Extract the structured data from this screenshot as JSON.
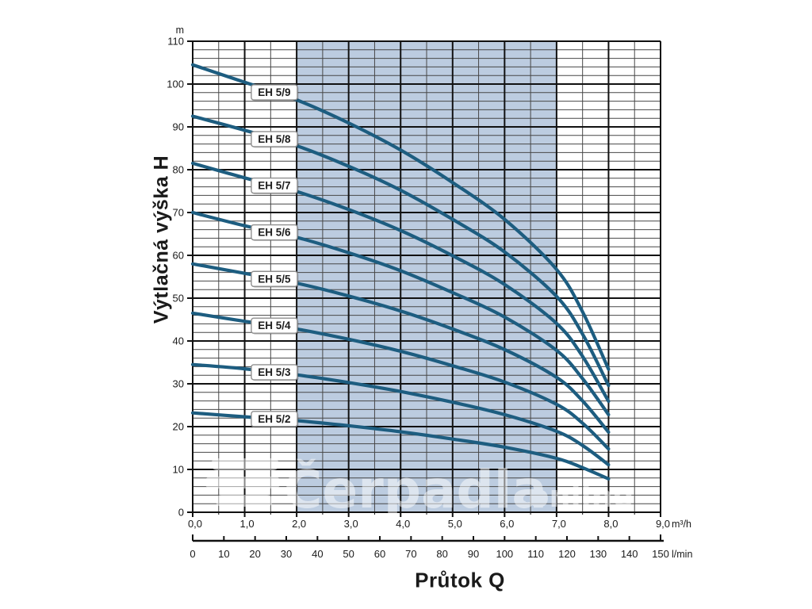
{
  "axes": {
    "y_title": "Výtlačná výška H",
    "x_title": "Průtok Q",
    "y_unit": "m",
    "x_unit_primary": "m³/h",
    "x_unit_secondary": "l/min"
  },
  "chart_data": {
    "type": "line",
    "title": "",
    "xlabel": "Průtok Q",
    "ylabel": "Výtlačná výška H",
    "y_unit": "m",
    "x_unit_primary": "m³/h",
    "x_unit_secondary": "l/min",
    "xlim": [
      0,
      9
    ],
    "ylim": [
      0,
      110
    ],
    "x2lim": [
      0,
      150
    ],
    "x_major_step": 1,
    "x_minor_step": 0.5,
    "y_major_step": 10,
    "y_minor_step": 2,
    "x2_major_step": 10,
    "grid": "on",
    "legend_position": "labels-on-curves",
    "x_tick_labels": [
      "0,0",
      "1,0",
      "2,0",
      "3,0",
      "4,0",
      "5,0",
      "6,0",
      "7,0",
      "8,0",
      "9,0"
    ],
    "y_tick_labels": [
      "0",
      "10",
      "20",
      "30",
      "40",
      "50",
      "60",
      "70",
      "80",
      "90",
      "100",
      "110"
    ],
    "x2_tick_labels": [
      "0",
      "10",
      "20",
      "30",
      "40",
      "50",
      "60",
      "70",
      "80",
      "90",
      "100",
      "110",
      "120",
      "130",
      "140",
      "150"
    ],
    "recommended_range_band": {
      "x_from": 2.0,
      "x_to": 7.0
    },
    "label_anchor_x": 1.57,
    "x": [
      0,
      1,
      2,
      3,
      4,
      5,
      6,
      7,
      7.5,
      8
    ],
    "series": [
      {
        "name": "EH 5/9",
        "values": [
          104.5,
          100.4,
          96.3,
          90.9,
          84.6,
          77.0,
          68.4,
          56.7,
          46.8,
          33.4
        ]
      },
      {
        "name": "EH 5/8",
        "values": [
          92.5,
          89.2,
          85.6,
          80.8,
          75.2,
          68.4,
          60.8,
          50.4,
          41.6,
          29.6
        ]
      },
      {
        "name": "EH 5/7",
        "values": [
          81.5,
          78.1,
          74.9,
          70.7,
          65.8,
          59.9,
          53.2,
          44.1,
          36.4,
          25.9
        ]
      },
      {
        "name": "EH 5/6",
        "values": [
          70.0,
          66.9,
          64.2,
          60.6,
          56.4,
          51.3,
          45.6,
          37.8,
          31.2,
          22.8
        ]
      },
      {
        "name": "EH 5/5",
        "values": [
          58.0,
          55.8,
          53.5,
          50.5,
          47.0,
          42.8,
          38.0,
          31.5,
          26.0,
          18.7
        ]
      },
      {
        "name": "EH 5/4",
        "values": [
          46.5,
          44.6,
          42.8,
          40.4,
          37.6,
          34.2,
          30.4,
          25.2,
          20.8,
          14.8
        ]
      },
      {
        "name": "EH 5/3",
        "values": [
          34.5,
          33.5,
          32.1,
          30.3,
          28.2,
          25.7,
          22.8,
          18.9,
          15.6,
          11.1
        ]
      },
      {
        "name": "EH 5/2",
        "values": [
          23.2,
          22.3,
          21.4,
          20.2,
          18.8,
          17.1,
          15.2,
          12.6,
          10.4,
          7.8
        ]
      }
    ]
  },
  "colors": {
    "curve": "#1d5d80",
    "band": "#bccce0",
    "grid_minor": "#474747",
    "grid_major": "#111111",
    "text": "#1a1a1a",
    "label_box_fill": "#ffffff",
    "label_box_border": "#8f8f8f"
  },
  "watermark": {
    "logo": "waves-logo-icon",
    "text_main": "Čerpadla",
    "text_suffix": ".online",
    "color": "#ffffff",
    "opacity": 0.5
  }
}
